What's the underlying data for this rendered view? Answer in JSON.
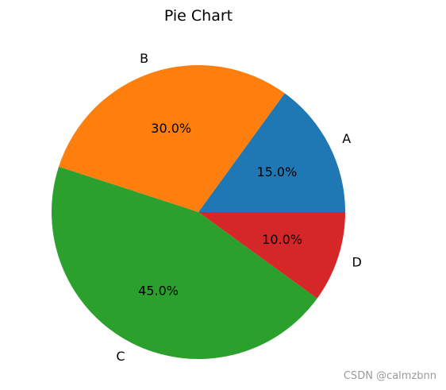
{
  "chart_data": {
    "type": "pie",
    "title": "Pie Chart",
    "labels": [
      "A",
      "B",
      "C",
      "D"
    ],
    "values": [
      15,
      30,
      45,
      10
    ],
    "percent_labels": [
      "15.0%",
      "30.0%",
      "45.0%",
      "10.0%"
    ],
    "colors": [
      "#1f77b4",
      "#ff7f0e",
      "#2ca02c",
      "#d62728"
    ],
    "start_angle_deg": 0,
    "direction": "counterclockwise"
  },
  "watermark": "CSDN @calmzbnn"
}
